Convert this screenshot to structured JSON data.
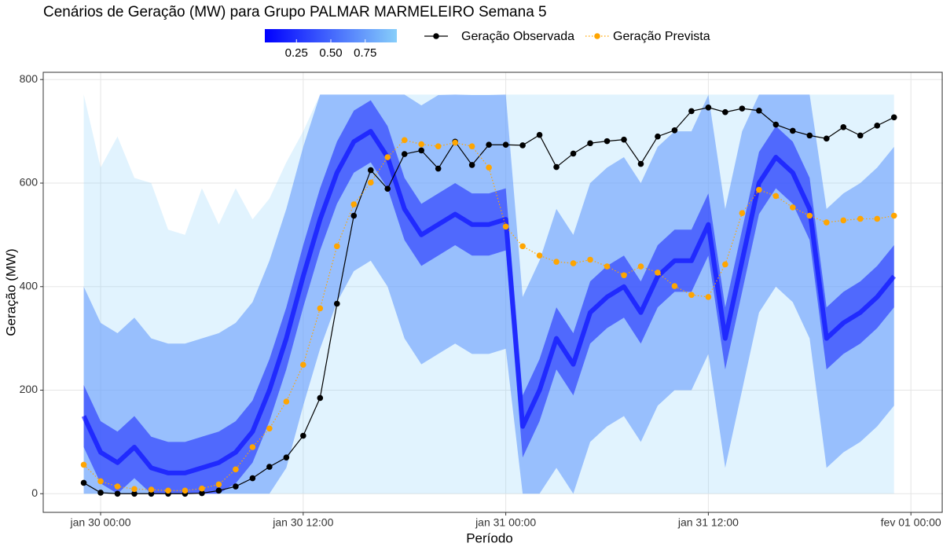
{
  "chart_data": {
    "type": "line",
    "title": "Cenários de Geração (MW) para Grupo PALMAR MARMELEIRO Semana 5",
    "x_label": "Período",
    "y_label": "Geração (MW)",
    "x": [
      "jan 29 23:00",
      "jan 30 00:00",
      "jan 30 01:00",
      "jan 30 02:00",
      "jan 30 03:00",
      "jan 30 04:00",
      "jan 30 05:00",
      "jan 30 06:00",
      "jan 30 07:00",
      "jan 30 08:00",
      "jan 30 09:00",
      "jan 30 10:00",
      "jan 30 11:00",
      "jan 30 12:00",
      "jan 30 13:00",
      "jan 30 14:00",
      "jan 30 15:00",
      "jan 30 16:00",
      "jan 30 17:00",
      "jan 30 18:00",
      "jan 30 19:00",
      "jan 30 20:00",
      "jan 30 21:00",
      "jan 30 22:00",
      "jan 30 23:00",
      "jan 31 00:00",
      "jan 31 01:00",
      "jan 31 02:00",
      "jan 31 03:00",
      "jan 31 04:00",
      "jan 31 05:00",
      "jan 31 06:00",
      "jan 31 07:00",
      "jan 31 08:00",
      "jan 31 09:00",
      "jan 31 10:00",
      "jan 31 11:00",
      "jan 31 12:00",
      "jan 31 13:00",
      "jan 31 14:00",
      "jan 31 15:00",
      "jan 31 16:00",
      "jan 31 17:00",
      "jan 31 18:00",
      "jan 31 19:00",
      "jan 31 20:00",
      "jan 31 21:00",
      "jan 31 22:00",
      "jan 31 23:00"
    ],
    "xlim": [
      "jan 29 20:36",
      "fev 01 01:54"
    ],
    "xticks": [
      "jan 30 00:00",
      "jan 30 12:00",
      "jan 31 00:00",
      "jan 31 12:00",
      "fev 01 00:00"
    ],
    "ylim": [
      -36,
      814
    ],
    "yticks": [
      0,
      200,
      400,
      600,
      800
    ],
    "grid": true,
    "series": [
      {
        "name": "Geração Observada",
        "color": "#000000",
        "linestyle": "solid",
        "values": [
          21,
          2,
          0,
          0,
          0,
          0,
          0,
          1,
          6,
          14,
          30,
          52,
          70,
          112,
          185,
          367,
          537,
          625,
          589,
          656,
          663,
          628,
          680,
          635,
          674,
          674,
          673,
          693,
          631,
          657,
          677,
          681,
          684,
          637,
          690,
          702,
          739,
          746,
          737,
          744,
          740,
          713,
          701,
          692,
          686,
          708,
          692,
          711,
          727
        ]
      },
      {
        "name": "Geração Prevista",
        "color": "#ffa500",
        "linestyle": "dotted",
        "values": [
          56,
          24,
          14,
          9,
          8,
          6,
          6,
          10,
          18,
          47,
          90,
          126,
          178,
          249,
          358,
          478,
          559,
          601,
          650,
          683,
          675,
          671,
          678,
          671,
          630,
          516,
          478,
          460,
          448,
          445,
          452,
          439,
          422,
          439,
          427,
          401,
          384,
          380,
          443,
          542,
          587,
          575,
          553,
          537,
          524,
          528,
          531,
          531,
          537
        ]
      }
    ],
    "fan": {
      "median": [
        150,
        80,
        60,
        90,
        50,
        40,
        40,
        50,
        60,
        80,
        120,
        200,
        300,
        420,
        530,
        620,
        680,
        700,
        650,
        550,
        500,
        520,
        540,
        520,
        520,
        530,
        130,
        200,
        300,
        250,
        350,
        380,
        400,
        350,
        420,
        450,
        450,
        520,
        300,
        450,
        600,
        650,
        620,
        550,
        300,
        330,
        350,
        380,
        420
      ],
      "bands": [
        {
          "level": 1.0,
          "upper": [
            771,
            630,
            690,
            610,
            600,
            510,
            500,
            590,
            520,
            590,
            530,
            570,
            640,
            700,
            771,
            771,
            771,
            771,
            771,
            771,
            771,
            771,
            771,
            771,
            771,
            771,
            771,
            771,
            771,
            771,
            771,
            771,
            771,
            771,
            771,
            771,
            771,
            771,
            771,
            771,
            771,
            771,
            771,
            771,
            771,
            771,
            771,
            771,
            771
          ],
          "lower": [
            0,
            0,
            0,
            0,
            0,
            0,
            0,
            0,
            0,
            0,
            0,
            0,
            0,
            0,
            0,
            0,
            0,
            0,
            0,
            0,
            0,
            0,
            0,
            0,
            0,
            0,
            0,
            0,
            0,
            0,
            0,
            0,
            0,
            0,
            0,
            0,
            0,
            0,
            0,
            0,
            0,
            0,
            0,
            0,
            0,
            0,
            0,
            0,
            0
          ]
        },
        {
          "level": 0.75,
          "upper": [
            400,
            330,
            310,
            340,
            300,
            290,
            290,
            300,
            310,
            330,
            370,
            450,
            550,
            670,
            771,
            771,
            771,
            771,
            771,
            771,
            750,
            770,
            771,
            770,
            770,
            771,
            380,
            450,
            550,
            500,
            600,
            630,
            650,
            600,
            670,
            700,
            700,
            770,
            550,
            700,
            771,
            771,
            771,
            771,
            550,
            580,
            600,
            630,
            670
          ],
          "lower": [
            0,
            0,
            0,
            0,
            0,
            0,
            0,
            0,
            0,
            0,
            0,
            0,
            50,
            170,
            280,
            370,
            430,
            450,
            400,
            300,
            250,
            270,
            290,
            270,
            270,
            280,
            0,
            0,
            50,
            0,
            100,
            130,
            150,
            100,
            170,
            200,
            200,
            270,
            50,
            200,
            350,
            400,
            370,
            300,
            50,
            80,
            100,
            130,
            170
          ]
        },
        {
          "level": 0.25,
          "upper": [
            210,
            140,
            120,
            150,
            110,
            100,
            100,
            110,
            120,
            140,
            180,
            260,
            360,
            480,
            590,
            680,
            740,
            760,
            710,
            610,
            560,
            580,
            600,
            580,
            580,
            590,
            190,
            260,
            360,
            310,
            410,
            440,
            460,
            410,
            480,
            510,
            510,
            580,
            360,
            510,
            660,
            710,
            680,
            610,
            360,
            390,
            410,
            440,
            480
          ],
          "lower": [
            90,
            20,
            0,
            30,
            0,
            0,
            0,
            0,
            0,
            20,
            60,
            140,
            240,
            360,
            470,
            560,
            620,
            640,
            590,
            490,
            440,
            460,
            480,
            460,
            460,
            470,
            70,
            140,
            240,
            190,
            290,
            320,
            340,
            290,
            360,
            390,
            390,
            460,
            240,
            390,
            540,
            590,
            560,
            490,
            240,
            270,
            290,
            320,
            360
          ]
        }
      ],
      "colorbar": {
        "colors": [
          "#0000ff",
          "#87cefa"
        ],
        "lim": [
          0.02,
          0.98
        ],
        "ticks": [
          0.25,
          {
            "value": 0.5,
            "label": "0.50"
          },
          0.75
        ]
      }
    }
  }
}
